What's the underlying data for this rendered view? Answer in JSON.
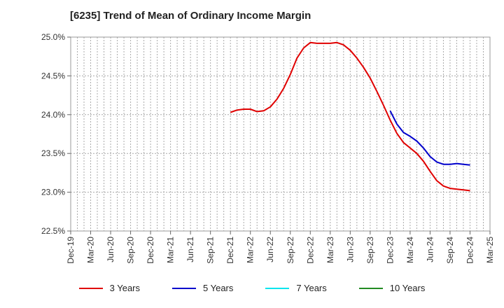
{
  "chart_data": {
    "type": "line",
    "title": "[6235]  Trend of Mean of Ordinary Income Margin",
    "xlabel": "",
    "ylabel": "",
    "x_ticks": [
      "Dec-19",
      "Mar-20",
      "Jun-20",
      "Sep-20",
      "Dec-20",
      "Mar-21",
      "Jun-21",
      "Sep-21",
      "Dec-21",
      "Mar-22",
      "Jun-22",
      "Sep-22",
      "Dec-22",
      "Mar-23",
      "Jun-23",
      "Sep-23",
      "Dec-23",
      "Mar-24",
      "Jun-24",
      "Sep-24",
      "Dec-24",
      "Mar-25"
    ],
    "y_ticks": [
      "22.5%",
      "23.0%",
      "23.5%",
      "24.0%",
      "24.5%",
      "25.0%"
    ],
    "ylim": [
      22.5,
      25.0
    ],
    "grid": true,
    "legend_position": "bottom",
    "series": [
      {
        "name": "3 Years",
        "color": "#e00000",
        "x": [
          "Dec-21",
          "Jan-22",
          "Feb-22",
          "Mar-22",
          "Apr-22",
          "May-22",
          "Jun-22",
          "Jul-22",
          "Aug-22",
          "Sep-22",
          "Oct-22",
          "Nov-22",
          "Dec-22",
          "Jan-23",
          "Feb-23",
          "Mar-23",
          "Apr-23",
          "May-23",
          "Jun-23",
          "Jul-23",
          "Aug-23",
          "Sep-23",
          "Oct-23",
          "Nov-23",
          "Dec-23",
          "Jan-24",
          "Feb-24",
          "Mar-24",
          "Apr-24",
          "May-24",
          "Jun-24",
          "Jul-24",
          "Aug-24",
          "Sep-24",
          "Oct-24",
          "Nov-24",
          "Dec-24"
        ],
        "values": [
          24.03,
          24.06,
          24.07,
          24.07,
          24.04,
          24.05,
          24.1,
          24.2,
          24.34,
          24.52,
          24.73,
          24.86,
          24.93,
          24.92,
          24.92,
          24.92,
          24.93,
          24.9,
          24.83,
          24.73,
          24.61,
          24.47,
          24.3,
          24.12,
          23.93,
          23.76,
          23.64,
          23.57,
          23.5,
          23.4,
          23.27,
          23.15,
          23.08,
          23.05,
          23.04,
          23.03,
          23.02
        ]
      },
      {
        "name": "5 Years",
        "color": "#0000cc",
        "x": [
          "Dec-23",
          "Jan-24",
          "Feb-24",
          "Mar-24",
          "Apr-24",
          "May-24",
          "Jun-24",
          "Jul-24",
          "Aug-24",
          "Sep-24",
          "Oct-24",
          "Nov-24",
          "Dec-24"
        ],
        "values": [
          24.05,
          23.88,
          23.77,
          23.72,
          23.66,
          23.57,
          23.46,
          23.39,
          23.36,
          23.36,
          23.37,
          23.36,
          23.35
        ]
      },
      {
        "name": "7 Years",
        "color": "#00e5ee",
        "x": [],
        "values": []
      },
      {
        "name": "10 Years",
        "color": "#228b22",
        "x": [],
        "values": []
      }
    ]
  }
}
